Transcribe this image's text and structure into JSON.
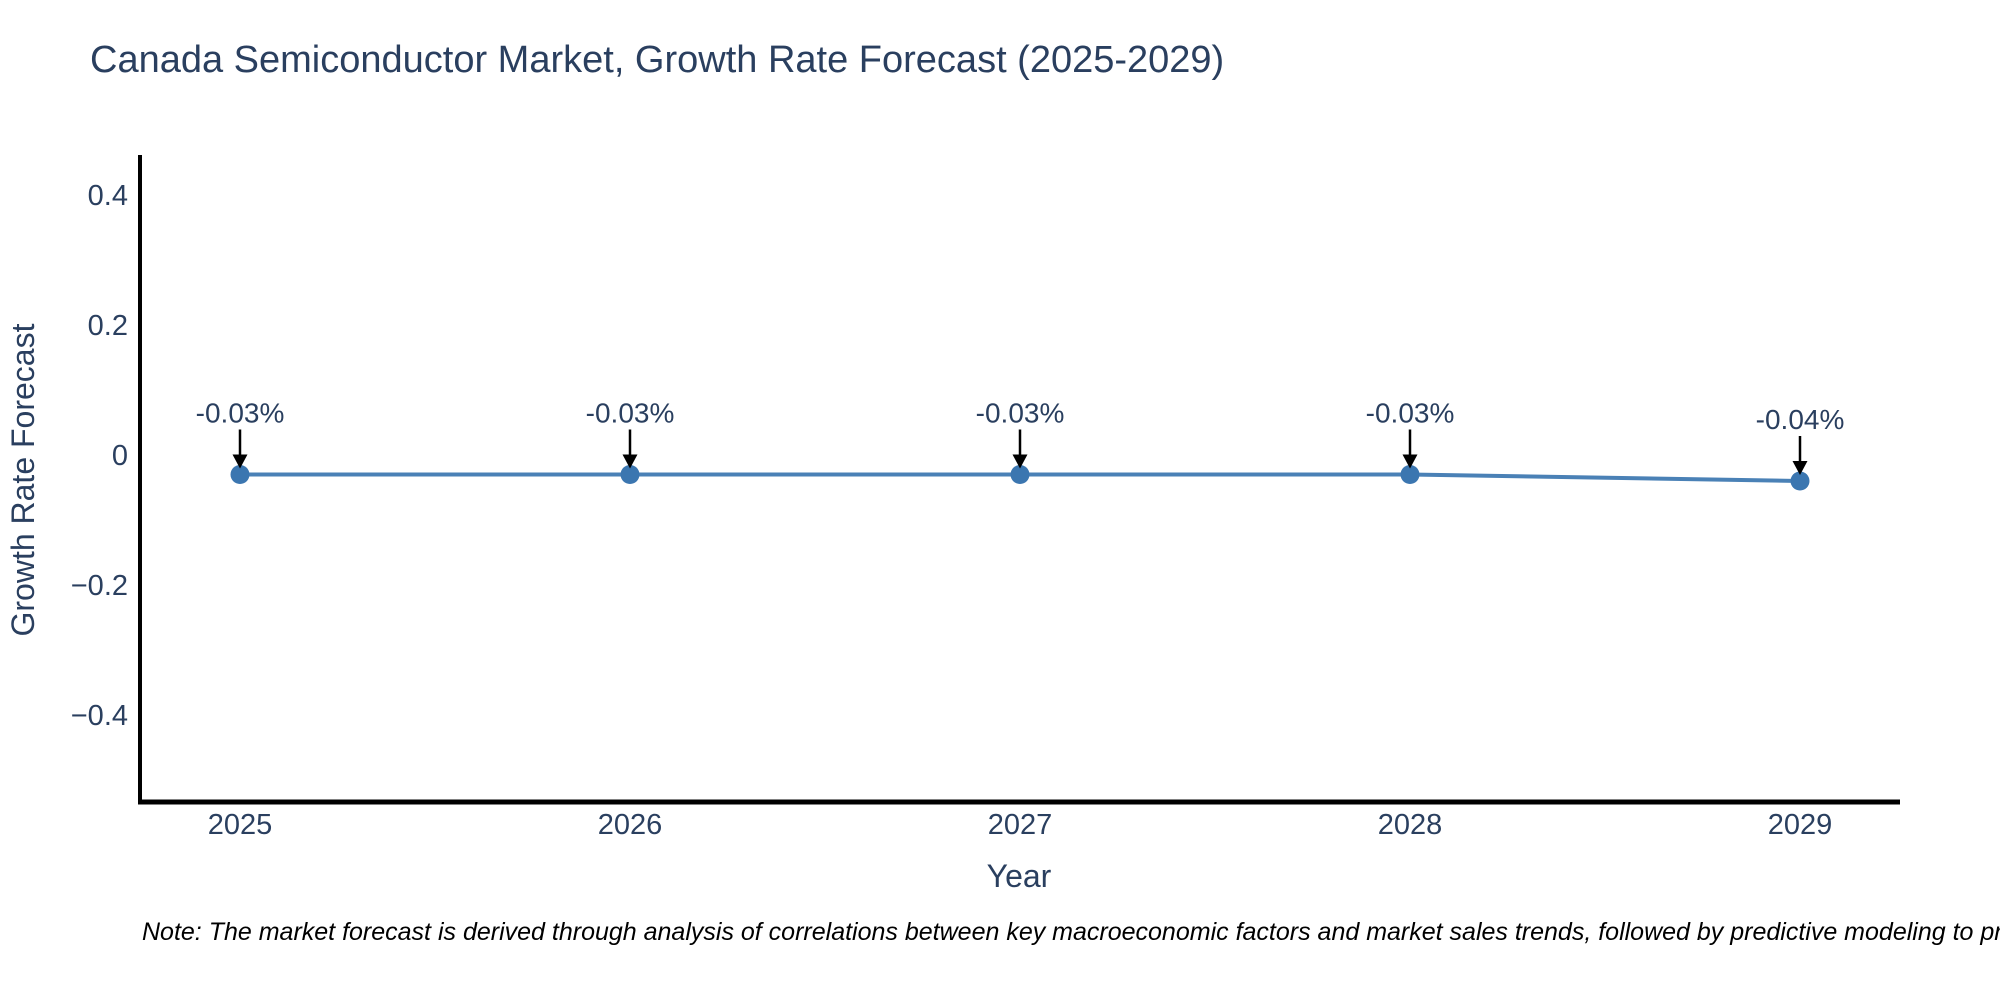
{
  "chart_data": {
    "type": "line",
    "title": "Canada Semiconductor Market, Growth Rate Forecast (2025-2029)",
    "xlabel": "Year",
    "ylabel": "Growth Rate Forecast",
    "x": [
      2025,
      2026,
      2027,
      2028,
      2029
    ],
    "values": [
      -0.03,
      -0.03,
      -0.03,
      -0.03,
      -0.04
    ],
    "point_labels": [
      "-0.03%",
      "-0.03%",
      "-0.03%",
      "-0.03%",
      "-0.04%"
    ],
    "x_tick_labels": [
      "2025",
      "2026",
      "2027",
      "2028",
      "2029"
    ],
    "y_ticks": [
      0.4,
      0.2,
      0,
      -0.2,
      -0.4
    ],
    "y_tick_labels": [
      "0.4",
      "0.2",
      "0",
      "−0.2",
      "−0.4"
    ],
    "ylim": [
      -0.53,
      0.46
    ],
    "xlim": [
      2024.74,
      2029.25
    ],
    "grid": false,
    "legend": "none",
    "line_color": "#4A81B6",
    "marker_color": "#3B76B0",
    "axis_color": "#000000",
    "text_color": "#2a3f5f",
    "arrow_color": "#000000"
  },
  "note": "Note: The market forecast is derived through analysis of correlations between key macroeconomic factors and market sales trends, followed by predictive modeling to project future sales."
}
